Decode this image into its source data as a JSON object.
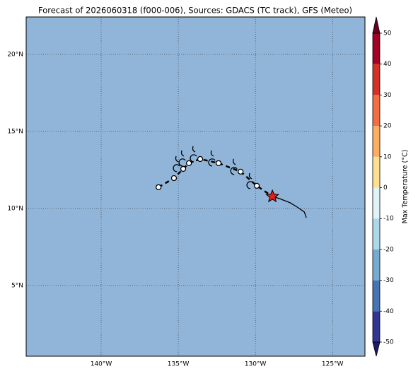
{
  "chart_data": {
    "type": "map",
    "title": "Forecast of 2026060318 (f000-006), Sources: GDACS (TC track), GFS (Meteo)",
    "background_color": "#91b5d9",
    "xlim": [
      -144.86,
      -122.9
    ],
    "ylim": [
      0.41,
      22.43
    ],
    "xticks": [
      {
        "value": -140,
        "label": "140°W"
      },
      {
        "value": -135,
        "label": "135°W"
      },
      {
        "value": -130,
        "label": "130°W"
      },
      {
        "value": -125,
        "label": "125°W"
      }
    ],
    "yticks": [
      {
        "value": 5,
        "label": "5°N"
      },
      {
        "value": 10,
        "label": "10°N"
      },
      {
        "value": 15,
        "label": "15°N"
      },
      {
        "value": 20,
        "label": "20°N"
      }
    ],
    "grid": true,
    "forecast_track": {
      "lon": [
        -136.28,
        -135.28,
        -134.68,
        -134.31,
        -133.58,
        -132.39,
        -130.96,
        -129.91,
        -128.9
      ],
      "lat": [
        11.38,
        11.97,
        12.57,
        12.94,
        13.21,
        12.94,
        12.39,
        11.47,
        10.78
      ]
    },
    "observed_track": {
      "lon": [
        -128.9,
        -128.44,
        -127.75,
        -127.29,
        -126.83,
        -126.7
      ],
      "lat": [
        10.78,
        10.64,
        10.37,
        10.09,
        9.77,
        9.4
      ]
    },
    "colorbar": {
      "label": "Max Temperature (°C)",
      "lim": [
        -50,
        50
      ],
      "ticks": [
        -50,
        -40,
        -30,
        -20,
        -10,
        0,
        10,
        20,
        30,
        40,
        50
      ],
      "colors": [
        "#313695",
        "#4575b4",
        "#74add1",
        "#abd9e9",
        "#e0f3f8",
        "#fee090",
        "#fdae61",
        "#f46d43",
        "#d73027",
        "#a50026"
      ],
      "extend_colors": [
        "#1a1a6e",
        "#67001f"
      ]
    }
  }
}
